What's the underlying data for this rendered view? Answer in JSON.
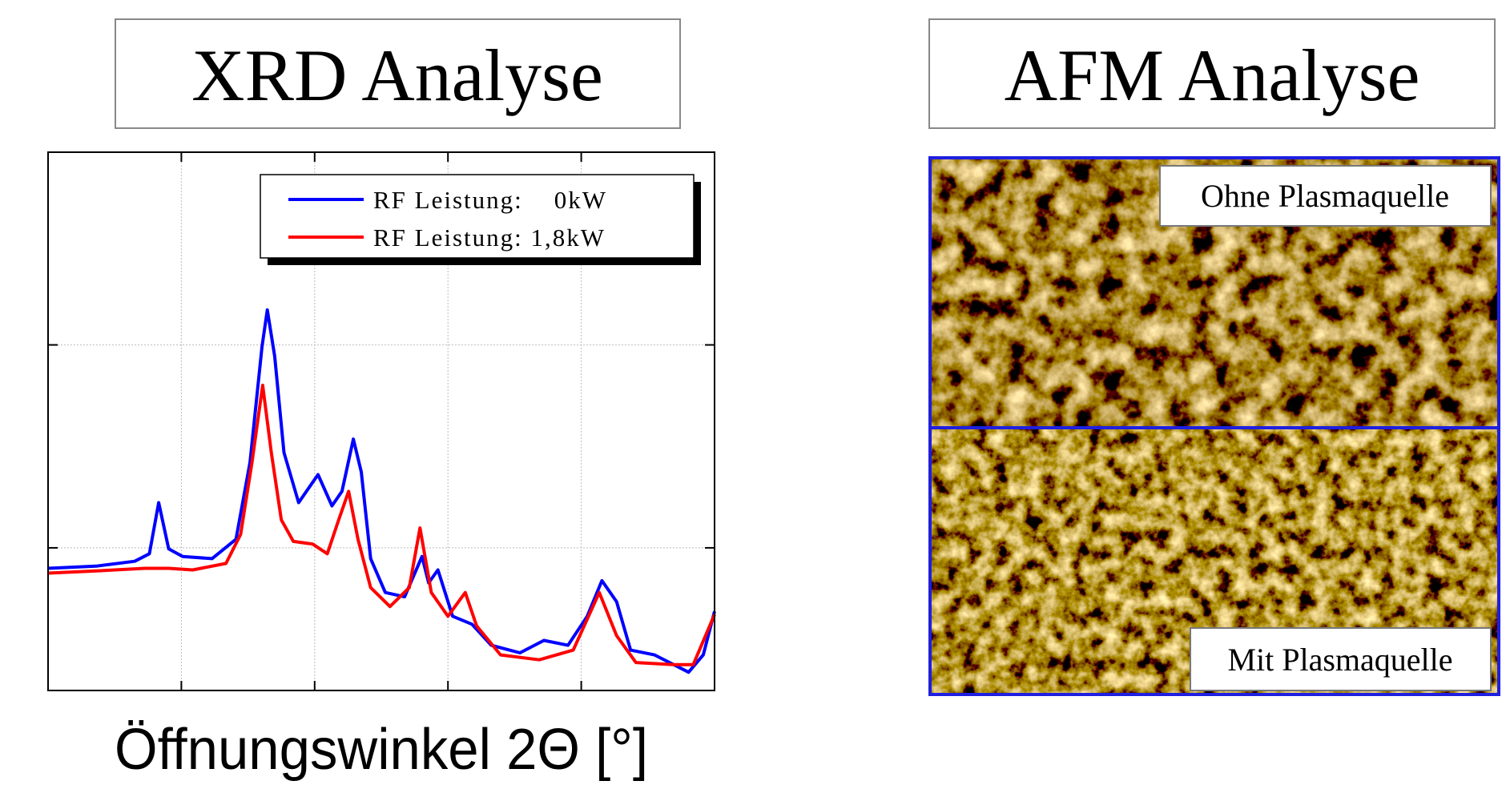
{
  "chart_data": {
    "type": "line",
    "title": "XRD Analyse",
    "x_label": "Öffnungswinkel 2Θ [°]",
    "xlim": [
      0,
      100
    ],
    "ylim": [
      0,
      100
    ],
    "xticks": [
      20,
      40,
      60,
      80
    ],
    "yticks": [
      26.5,
      64.2
    ],
    "grid": true,
    "legend": "upper right",
    "series": [
      {
        "name": "RF Leistung:    0kW",
        "color": "#0000ff",
        "x": [
          0,
          7.2,
          13,
          15.2,
          16.6,
          18.1,
          20.2,
          24.6,
          28.2,
          30.3,
          32.1,
          32.9,
          34,
          35.4,
          37.6,
          40.5,
          42.6,
          44.1,
          45.8,
          47,
          48.4,
          50.6,
          53.5,
          56.1,
          57.1,
          58.5,
          60.7,
          63.6,
          66.5,
          70.8,
          74.4,
          78,
          80.9,
          83.1,
          85.3,
          87.4,
          91,
          96.1,
          98.3,
          100
        ],
        "values": [
          22.7,
          23.1,
          24,
          25.4,
          34.9,
          26.3,
          24.9,
          24.5,
          28.1,
          42.4,
          63.9,
          70.7,
          62.1,
          44.2,
          34.9,
          40.1,
          34.3,
          37,
          46.7,
          40.6,
          24.5,
          18.2,
          17.4,
          24.9,
          20,
          22.4,
          13.8,
          12.3,
          8.4,
          7,
          9.3,
          8.4,
          13.8,
          20.4,
          16.5,
          7.5,
          6.6,
          3.4,
          6.6,
          14.7
        ]
      },
      {
        "name": "RF Leistung: 1,8kW",
        "color": "#ff0000",
        "x": [
          0,
          7.2,
          14.5,
          18.1,
          21.7,
          26.7,
          28.9,
          30.6,
          32.2,
          33.5,
          35,
          36.8,
          39.7,
          41.9,
          43.6,
          45.1,
          46.5,
          48.4,
          51.3,
          54.2,
          55.8,
          57.5,
          60,
          62.6,
          64.3,
          67.9,
          73.7,
          78.8,
          82.7,
          85.3,
          88.2,
          93.9,
          96.8,
          100
        ],
        "values": [
          21.8,
          22.2,
          22.7,
          22.7,
          22.4,
          23.6,
          29,
          42.4,
          56.7,
          44.2,
          31.7,
          27.7,
          27.2,
          25.4,
          31.7,
          37,
          28.1,
          19.1,
          15.6,
          19.1,
          30.2,
          18.2,
          13.8,
          18.2,
          12,
          6.6,
          5.7,
          7.5,
          18.2,
          10.2,
          5.2,
          4.8,
          4.8,
          14.1
        ]
      }
    ]
  },
  "afm": {
    "title": "AFM Analyse",
    "labels": [
      "Ohne Plasmaquelle",
      "Mit Plasmaquelle"
    ]
  }
}
